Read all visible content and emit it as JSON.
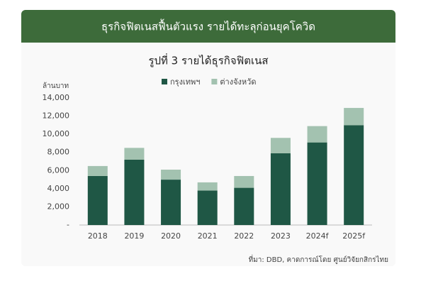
{
  "chart_data": {
    "type": "stacked-bar",
    "banner": "ธุรกิจฟิตเนสฟื้นตัวแรง รายได้ทะลุก่อนยุคโควิด",
    "title": "รูปที่ 3 รายได้ธุรกิจฟิตเนส",
    "y_label": "ล้านบาท",
    "source": "ที่มา: DBD, คาดการณ์โดย ศูนย์วิจัยกสิกรไทย",
    "categories": [
      "2018",
      "2019",
      "2020",
      "2021",
      "2022",
      "2023",
      "2024f",
      "2025f"
    ],
    "series": [
      {
        "name": "กรุงเทพฯ",
        "color": "#1f5745",
        "values": [
          5400,
          7200,
          5000,
          3800,
          4100,
          7900,
          9100,
          11000
        ]
      },
      {
        "name": "ต่างจังหวัด",
        "color": "#a3c2b0",
        "values": [
          1100,
          1300,
          1100,
          900,
          1300,
          1700,
          1800,
          1900
        ]
      }
    ],
    "ylim": [
      0,
      14000
    ],
    "yticks": [
      {
        "value": 0,
        "label": "-"
      },
      {
        "value": 2000,
        "label": "2,000"
      },
      {
        "value": 4000,
        "label": "4,000"
      },
      {
        "value": 6000,
        "label": "6,000"
      },
      {
        "value": 8000,
        "label": "8,000"
      },
      {
        "value": 10000,
        "label": "10,000"
      },
      {
        "value": 12000,
        "label": "12,000"
      },
      {
        "value": 14000,
        "label": "14,000"
      }
    ]
  }
}
